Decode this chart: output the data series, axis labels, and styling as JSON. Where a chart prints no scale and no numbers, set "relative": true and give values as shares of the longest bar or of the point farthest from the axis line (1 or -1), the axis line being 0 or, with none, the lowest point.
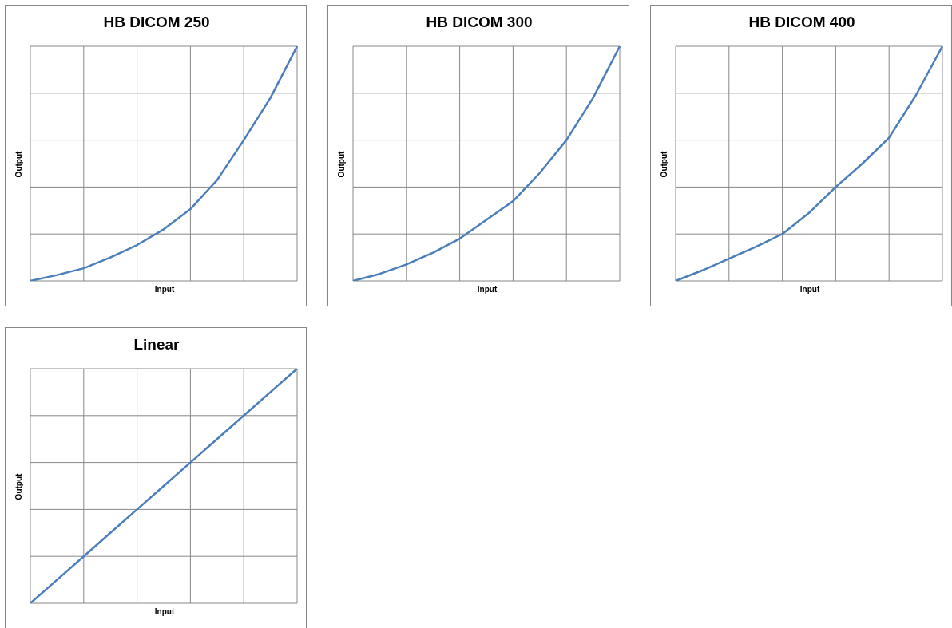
{
  "chart_data": [
    {
      "type": "line",
      "title": "HB DICOM 250",
      "xlabel": "Input",
      "ylabel": "Output",
      "relative": true,
      "grid": true,
      "marker": "none",
      "categories": [
        null,
        null,
        null,
        null,
        null,
        null,
        null,
        null,
        null,
        null,
        null
      ],
      "series": [
        {
          "color": "#4a7ebb",
          "values": [
            0,
            0.025,
            0.054,
            0.1,
            0.153,
            0.22,
            0.306,
            0.43,
            0.6,
            0.78,
            1
          ]
        }
      ]
    },
    {
      "type": "line",
      "title": "HB DICOM 300",
      "xlabel": "Input",
      "ylabel": "Output",
      "relative": true,
      "grid": true,
      "marker": "none",
      "categories": [
        null,
        null,
        null,
        null,
        null,
        null,
        null,
        null,
        null,
        null,
        null
      ],
      "series": [
        {
          "color": "#4a7ebb",
          "values": [
            0,
            0.03,
            0.07,
            0.12,
            0.18,
            0.26,
            0.34,
            0.46,
            0.6,
            0.78,
            1
          ]
        }
      ]
    },
    {
      "type": "line",
      "title": "HB DICOM 400",
      "xlabel": "Input",
      "ylabel": "Output",
      "relative": true,
      "grid": true,
      "marker": "none",
      "categories": [
        null,
        null,
        null,
        null,
        null,
        null,
        null,
        null,
        null,
        null,
        null
      ],
      "series": [
        {
          "color": "#4a7ebb",
          "values": [
            0,
            0.045,
            0.095,
            0.145,
            0.2,
            0.29,
            0.4,
            0.5,
            0.61,
            0.79,
            1
          ]
        }
      ]
    },
    {
      "type": "line",
      "title": "Linear",
      "xlabel": "Input",
      "ylabel": "Output",
      "relative": true,
      "grid": true,
      "marker": "none",
      "categories": [
        null,
        null,
        null,
        null,
        null,
        null,
        null,
        null,
        null,
        null,
        null
      ],
      "series": [
        {
          "color": "#4a7ebb",
          "values": [
            0,
            0.1,
            0.2,
            0.3,
            0.4,
            0.5,
            0.6,
            0.7,
            0.8,
            0.9,
            1
          ]
        }
      ]
    }
  ]
}
